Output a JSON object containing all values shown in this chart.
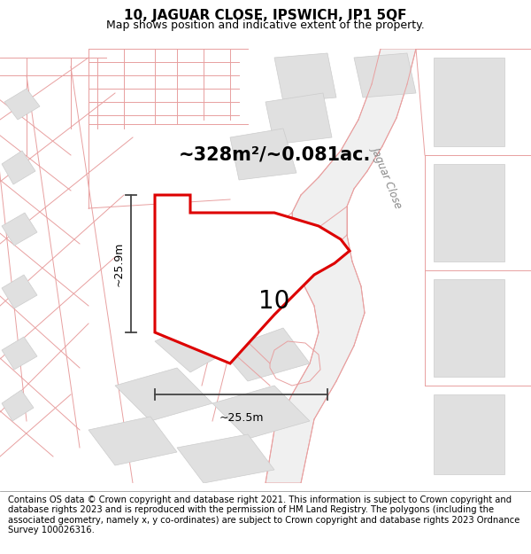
{
  "title_line1": "10, JAGUAR CLOSE, IPSWICH, IP1 5QF",
  "title_line2": "Map shows position and indicative extent of the property.",
  "area_text": "~328m²/~0.081ac.",
  "label_number": "10",
  "dim_horizontal": "~25.5m",
  "dim_vertical": "~25.9m",
  "street_label": "Jaguar Close",
  "footer_text": "Contains OS data © Crown copyright and database right 2021. This information is subject to Crown copyright and database rights 2023 and is reproduced with the permission of HM Land Registry. The polygons (including the associated geometry, namely x, y co-ordinates) are subject to Crown copyright and database rights 2023 Ordnance Survey 100026316.",
  "bg_color": "#f7f7f7",
  "map_bg_color": "#f7f7f7",
  "highlight_color": "#dd0000",
  "plot_line_color": "#e8a0a0",
  "road_line_color": "#e8a0a0",
  "building_fill": "#e0e0e0",
  "building_edge": "#cccccc",
  "highlight_fill": "#ffffff",
  "road_fill": "#ffffff",
  "dim_line_color": "#444444",
  "title_fontsize": 11,
  "subtitle_fontsize": 9,
  "footer_fontsize": 7.2,
  "area_fontsize": 15,
  "number_fontsize": 20,
  "dim_fontsize": 9,
  "street_fontsize": 8.5
}
